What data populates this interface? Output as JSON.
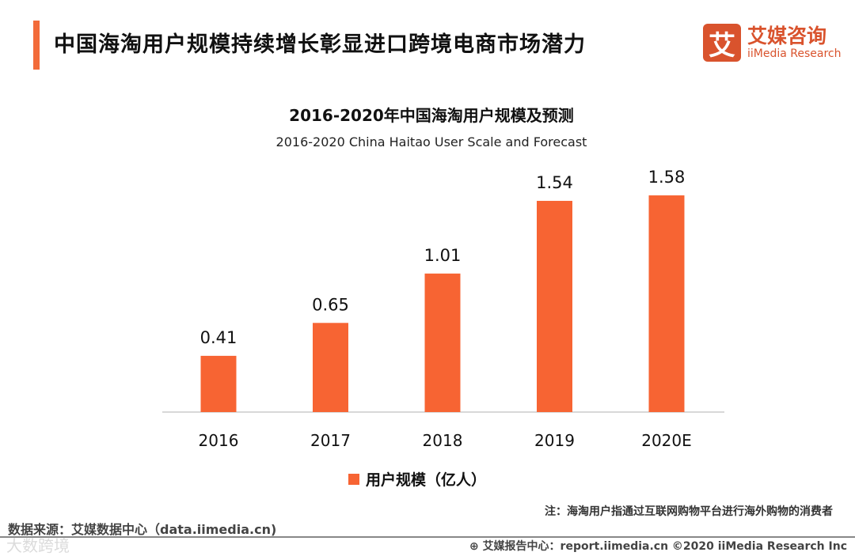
{
  "header": {
    "title": "中国海淘用户规模持续增长彰显进口跨境电商市场潜力"
  },
  "logo": {
    "mark": "艾",
    "cn": "艾媒咨询",
    "en": "iiMedia Research"
  },
  "chart_data": {
    "type": "bar",
    "title": "2016-2020年中国海淘用户规模及预测",
    "subtitle": "2016-2020 China Haitao User Scale and Forecast",
    "categories": [
      "2016",
      "2017",
      "2018",
      "2019",
      "2020E"
    ],
    "values": [
      0.41,
      0.65,
      1.01,
      1.54,
      1.58
    ],
    "value_labels": [
      "0.41",
      "0.65",
      "1.01",
      "1.54",
      "1.58"
    ],
    "legend": "用户规模（亿人）",
    "ylim": [
      0,
      1.6
    ],
    "color": "#f76433"
  },
  "note": "注：海淘用户指通过互联网购物平台进行海外购物的消费者",
  "source": "数据来源：艾媒数据中心（data.iimedia.cn)",
  "footer": "艾媒报告中心：report.iimedia.cn  ©2020  iiMedia Research  Inc",
  "watermark": "大数跨境"
}
